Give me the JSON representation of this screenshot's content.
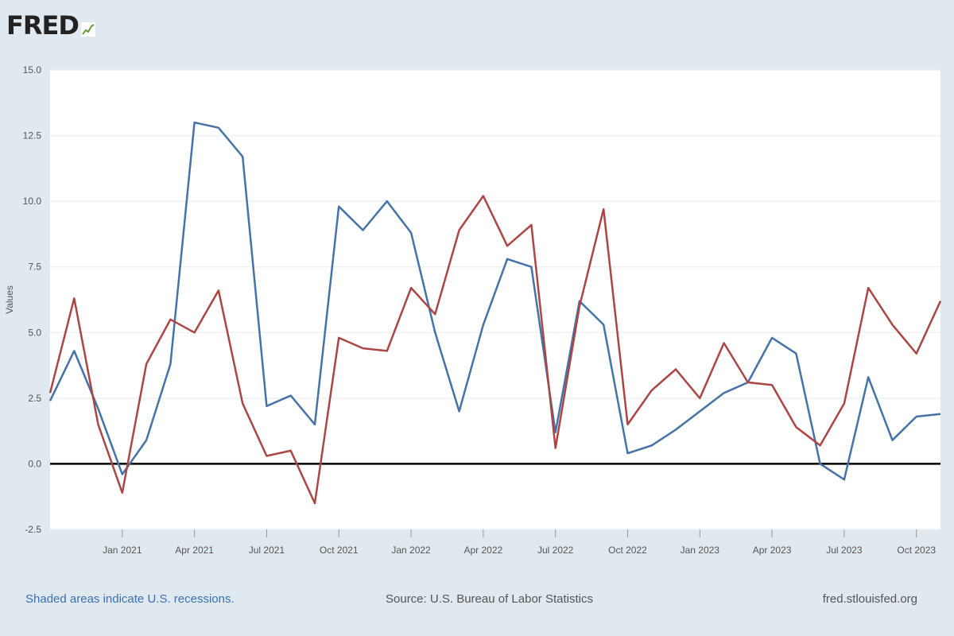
{
  "logo": {
    "text": "FRED"
  },
  "footer": {
    "recessions": "Shaded areas indicate U.S. recessions.",
    "source": "Source: U.S. Bureau of Labor Statistics",
    "url": "fred.stlouisfed.org"
  },
  "colors": {
    "background": "#e1e9f0",
    "plot": "#ffffff",
    "series_blue": "#4572a7",
    "series_red": "#aa4643",
    "zero_line": "#000000"
  },
  "chart_data": {
    "type": "line",
    "ylabel": "Values",
    "ylim": [
      -2.5,
      15.0
    ],
    "yticks": [
      "-2.5",
      "0.0",
      "2.5",
      "5.0",
      "7.5",
      "10.0",
      "12.5",
      "15.0"
    ],
    "xticks": [
      "Jan 2021",
      "Apr 2021",
      "Jul 2021",
      "Oct 2021",
      "Jan 2022",
      "Apr 2022",
      "Jul 2022",
      "Oct 2022",
      "Jan 2023",
      "Apr 2023",
      "Jul 2023",
      "Oct 2023"
    ],
    "x": [
      "2020-10",
      "2020-11",
      "2020-12",
      "2021-01",
      "2021-02",
      "2021-03",
      "2021-04",
      "2021-05",
      "2021-06",
      "2021-07",
      "2021-08",
      "2021-09",
      "2021-10",
      "2021-11",
      "2021-12",
      "2022-01",
      "2022-02",
      "2022-03",
      "2022-04",
      "2022-05",
      "2022-06",
      "2022-07",
      "2022-08",
      "2022-09",
      "2022-10",
      "2022-11",
      "2022-12",
      "2023-01",
      "2023-02",
      "2023-03",
      "2023-04",
      "2023-05",
      "2023-06",
      "2023-07",
      "2023-08",
      "2023-09",
      "2023-10",
      "2023-11"
    ],
    "grid": true,
    "series": [
      {
        "color": "#4572a7",
        "values": [
          2.4,
          4.3,
          2.1,
          -0.4,
          0.9,
          3.8,
          13.0,
          12.8,
          11.7,
          2.2,
          2.6,
          1.5,
          9.8,
          8.9,
          10.0,
          8.8,
          5.0,
          2.0,
          5.3,
          7.8,
          7.5,
          1.2,
          6.2,
          5.3,
          0.4,
          0.7,
          1.3,
          2.0,
          2.7,
          3.1,
          4.8,
          4.2,
          0.0,
          -0.6,
          3.3,
          0.9,
          1.8,
          1.9
        ]
      },
      {
        "color": "#aa4643",
        "values": [
          2.7,
          6.3,
          1.5,
          -1.1,
          3.8,
          5.5,
          5.0,
          6.6,
          2.3,
          0.3,
          0.5,
          -1.5,
          4.8,
          4.4,
          4.3,
          6.7,
          5.7,
          8.9,
          10.2,
          8.3,
          9.1,
          0.6,
          6.0,
          9.7,
          1.5,
          2.8,
          3.6,
          2.5,
          4.6,
          3.1,
          3.0,
          1.4,
          0.7,
          2.3,
          6.7,
          5.3,
          4.2,
          6.2
        ]
      }
    ]
  }
}
